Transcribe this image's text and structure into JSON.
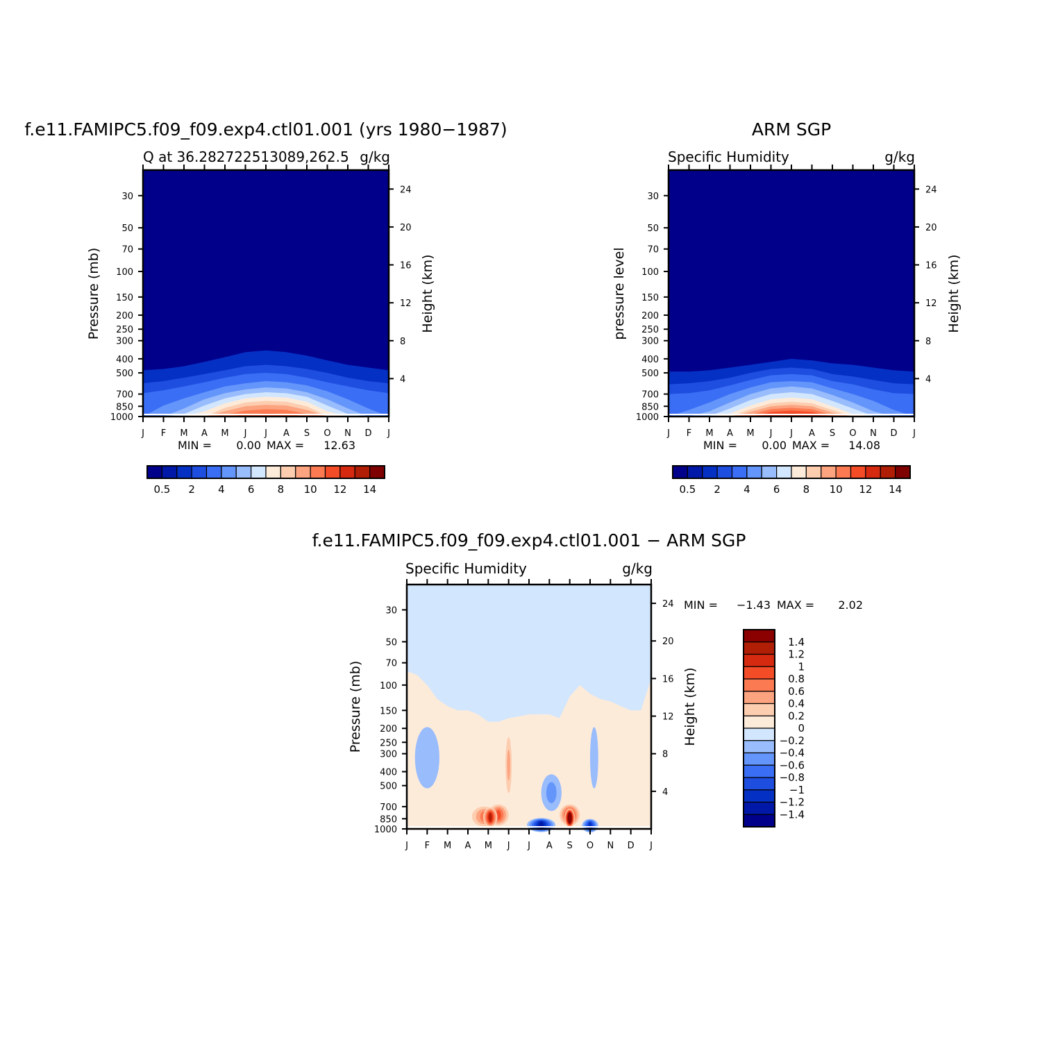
{
  "colors": {
    "scale": [
      "#00008B",
      "#0018A8",
      "#0530C4",
      "#1E4EE0",
      "#3A6EF5",
      "#6495FA",
      "#98BCFC",
      "#D2E6FD",
      "#FDEBDA",
      "#FDCDB0",
      "#FCA37F",
      "#FB7A52",
      "#F54C28",
      "#D62A10",
      "#B01E05",
      "#7E0000"
    ],
    "diff_scale": [
      "#00008B",
      "#0018A8",
      "#0530C4",
      "#1E4EE0",
      "#3A6EF5",
      "#6495FA",
      "#98BCFC",
      "#D2E6FD",
      "#FDEBDA",
      "#FDCDB0",
      "#FCA37F",
      "#FB7A52",
      "#F54C28",
      "#D62A10",
      "#B01E05",
      "#8B0000"
    ]
  },
  "chart_data": [
    {
      "id": "model",
      "type": "heatmap",
      "title": "f.e11.FAMIPC5.f09_f09.exp4.ctl01.001 (yrs 1980−1987)",
      "subtitle_left": "Q at 36.282722513089,262.5",
      "subtitle_right": "g/kg",
      "ylabel": "Pressure (mb)",
      "ylabel_right": "Height (km)",
      "x_ticks": [
        "J",
        "F",
        "M",
        "A",
        "M",
        "J",
        "J",
        "A",
        "S",
        "O",
        "N",
        "D",
        "J"
      ],
      "y_ticks": [
        "30",
        "50",
        "70",
        "100",
        "150",
        "200",
        "250",
        "300",
        "400",
        "500",
        "700",
        "850",
        "1000"
      ],
      "y_ticks_right": [
        "24",
        "20",
        "16",
        "12",
        "8",
        "4"
      ],
      "stats": {
        "min_label": "MIN =",
        "min": "0.00",
        "max_label": "MAX =",
        "max": "12.63"
      },
      "colorbar": {
        "orientation": "horizontal",
        "labels": [
          "0.5",
          "2",
          "4",
          "6",
          "8",
          "10",
          "12",
          "14"
        ]
      },
      "contour_tops_hPa": {
        "x": [
          0,
          1,
          2,
          3,
          4,
          5,
          6,
          7,
          8,
          9,
          10,
          11,
          12
        ],
        "2": [
          480,
          470,
          450,
          420,
          390,
          360,
          350,
          360,
          380,
          410,
          440,
          460,
          480
        ],
        "3": [
          590,
          570,
          540,
          510,
          480,
          450,
          440,
          450,
          470,
          500,
          540,
          570,
          590
        ],
        "4": [
          690,
          660,
          620,
          580,
          540,
          510,
          500,
          510,
          540,
          580,
          620,
          660,
          690
        ],
        "5": [
          1000,
          840,
          750,
          680,
          620,
          590,
          570,
          580,
          610,
          670,
          760,
          880,
          1000
        ],
        "6": [
          1000,
          1000,
          880,
          760,
          690,
          650,
          630,
          640,
          680,
          760,
          880,
          1000,
          1000
        ],
        "7": [
          1000,
          1000,
          960,
          840,
          750,
          700,
          680,
          690,
          730,
          840,
          960,
          1000,
          1000
        ],
        "8": [
          1000,
          1000,
          1000,
          920,
          810,
          750,
          730,
          740,
          790,
          920,
          1000,
          1000,
          1000
        ],
        "9": [
          1000,
          1000,
          1000,
          1000,
          870,
          800,
          780,
          790,
          850,
          990,
          1000,
          1000,
          1000
        ],
        "10": [
          1000,
          1000,
          1000,
          1000,
          920,
          850,
          830,
          840,
          900,
          1000,
          1000,
          1000,
          1000
        ],
        "11": [
          1000,
          1000,
          1000,
          1000,
          970,
          910,
          890,
          900,
          960,
          1000,
          1000,
          1000,
          1000
        ],
        "12": [
          1000,
          1000,
          1000,
          1000,
          1000,
          970,
          950,
          960,
          1000,
          1000,
          1000,
          1000,
          1000
        ]
      }
    },
    {
      "id": "obs",
      "type": "heatmap",
      "title": "ARM SGP",
      "subtitle_left": "Specific Humidity",
      "subtitle_right": "g/kg",
      "ylabel": "pressure level",
      "ylabel_right": "Height (km)",
      "x_ticks": [
        "J",
        "F",
        "M",
        "A",
        "M",
        "J",
        "J",
        "A",
        "S",
        "O",
        "N",
        "D",
        "J"
      ],
      "y_ticks": [
        "30",
        "50",
        "70",
        "100",
        "150",
        "200",
        "250",
        "300",
        "400",
        "500",
        "700",
        "850",
        "1000"
      ],
      "y_ticks_right": [
        "24",
        "20",
        "16",
        "12",
        "8",
        "4"
      ],
      "stats": {
        "min_label": "MIN =",
        "min": "0.00",
        "max_label": "MAX =",
        "max": "14.08"
      },
      "colorbar": {
        "orientation": "horizontal",
        "labels": [
          "0.5",
          "2",
          "4",
          "6",
          "8",
          "10",
          "12",
          "14"
        ]
      },
      "contour_tops_hPa": {
        "x": [
          0,
          1,
          2,
          3,
          4,
          5,
          6,
          7,
          8,
          9,
          10,
          11,
          12
        ],
        "2": [
          490,
          490,
          480,
          460,
          440,
          420,
          400,
          410,
          430,
          440,
          460,
          480,
          490
        ],
        "3": [
          600,
          590,
          570,
          540,
          500,
          470,
          460,
          470,
          510,
          530,
          560,
          590,
          600
        ],
        "4": [
          700,
          690,
          660,
          610,
          560,
          520,
          510,
          520,
          570,
          600,
          650,
          690,
          700
        ],
        "5": [
          1000,
          900,
          800,
          700,
          630,
          580,
          570,
          580,
          640,
          700,
          780,
          900,
          1000
        ],
        "6": [
          1000,
          1000,
          920,
          800,
          700,
          640,
          620,
          640,
          710,
          800,
          920,
          1000,
          1000
        ],
        "7": [
          1000,
          1000,
          990,
          880,
          770,
          700,
          680,
          700,
          780,
          880,
          990,
          1000,
          1000
        ],
        "8": [
          1000,
          1000,
          1000,
          950,
          840,
          760,
          740,
          760,
          850,
          960,
          1000,
          1000,
          1000
        ],
        "9": [
          1000,
          1000,
          1000,
          1000,
          890,
          810,
          790,
          810,
          900,
          1000,
          1000,
          1000,
          1000
        ],
        "10": [
          1000,
          1000,
          1000,
          1000,
          930,
          850,
          830,
          850,
          940,
          1000,
          1000,
          1000,
          1000
        ],
        "11": [
          1000,
          1000,
          1000,
          1000,
          970,
          890,
          870,
          890,
          980,
          1000,
          1000,
          1000,
          1000
        ],
        "12": [
          1000,
          1000,
          1000,
          1000,
          1000,
          930,
          910,
          930,
          1000,
          1000,
          1000,
          1000,
          1000
        ],
        "13": [
          1000,
          1000,
          1000,
          1000,
          1000,
          970,
          950,
          970,
          1000,
          1000,
          1000,
          1000,
          1000
        ]
      }
    },
    {
      "id": "diff",
      "type": "heatmap",
      "title": "f.e11.FAMIPC5.f09_f09.exp4.ctl01.001 − ARM SGP",
      "subtitle_left": "Specific Humidity",
      "subtitle_right": "g/kg",
      "ylabel": "Pressure (mb)",
      "ylabel_right": "Height (km)",
      "x_ticks": [
        "J",
        "F",
        "M",
        "A",
        "M",
        "J",
        "J",
        "A",
        "S",
        "O",
        "N",
        "D",
        "J"
      ],
      "y_ticks": [
        "30",
        "50",
        "70",
        "100",
        "150",
        "200",
        "250",
        "300",
        "400",
        "500",
        "700",
        "850",
        "1000"
      ],
      "y_ticks_right": [
        "24",
        "20",
        "16",
        "12",
        "8",
        "4"
      ],
      "stats": {
        "min_label": "MIN =",
        "min": "−1.43",
        "max_label": "MAX =",
        "max": "2.02"
      },
      "colorbar": {
        "orientation": "vertical",
        "labels": [
          "1.4",
          "1.2",
          "1",
          "0.8",
          "0.6",
          "0.4",
          "0.2",
          "0",
          "−0.2",
          "−0.4",
          "−0.6",
          "−0.8",
          "−1",
          "−1.2",
          "−1.4"
        ]
      },
      "positive_boundary_hPa": {
        "x": [
          0,
          0.5,
          1,
          1.5,
          2,
          2.5,
          3,
          3.5,
          4,
          4.5,
          5,
          5.5,
          6,
          6.5,
          7,
          7.5,
          8,
          8.5,
          9,
          9.5,
          10,
          10.5,
          11,
          11.5,
          12
        ],
        "p": [
          80,
          85,
          100,
          125,
          140,
          150,
          150,
          160,
          180,
          180,
          170,
          165,
          160,
          160,
          160,
          170,
          120,
          100,
          115,
          125,
          130,
          140,
          150,
          150,
          90
        ]
      },
      "blobs": [
        {
          "x": 3.8,
          "p": 820,
          "rx": 0.6,
          "value": 0.6
        },
        {
          "x": 4.5,
          "p": 800,
          "rx": 0.5,
          "value": 0.8
        },
        {
          "x": 4.1,
          "p": 830,
          "rx": 0.35,
          "value": 1.2
        },
        {
          "x": 8.0,
          "p": 800,
          "rx": 0.5,
          "value": 1.0
        },
        {
          "x": 8.0,
          "p": 840,
          "rx": 0.25,
          "value": 2.02
        },
        {
          "x": 6.6,
          "p": 940,
          "rx": 0.7,
          "value": -1.2
        },
        {
          "x": 9.0,
          "p": 950,
          "rx": 0.4,
          "value": -1.0
        },
        {
          "x": 7.1,
          "p": 560,
          "rx": 0.5,
          "value": -0.4
        },
        {
          "x": 1.0,
          "p": 320,
          "rx": 0.6,
          "value": -0.2
        },
        {
          "x": 9.2,
          "p": 320,
          "rx": 0.2,
          "value": -0.2
        },
        {
          "x": 5.0,
          "p": 360,
          "rx": 0.15,
          "value": 0.4
        }
      ]
    }
  ]
}
